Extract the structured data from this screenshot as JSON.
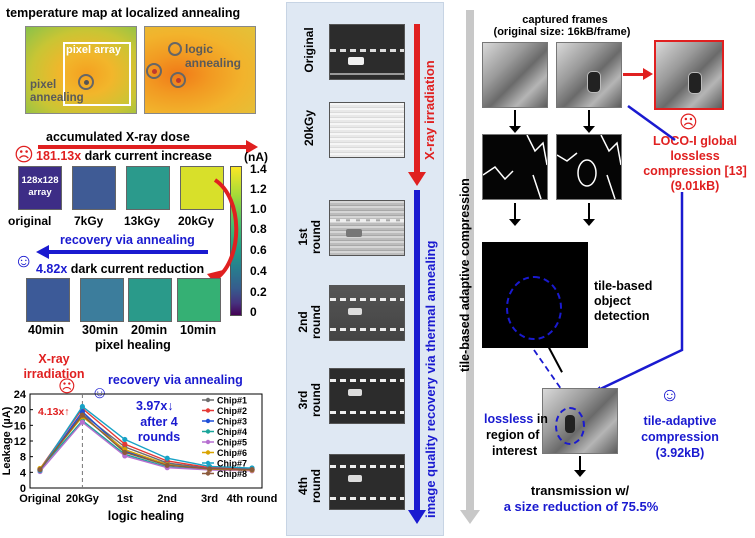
{
  "left": {
    "temp_title": "temperature map at localized annealing",
    "pixel_array": "pixel array",
    "pixel_annealing": "pixel annealing",
    "logic_annealing": "logic annealing",
    "accumulated_dose": "accumulated X-ray dose",
    "dark_increase_val": "181.13x",
    "dark_increase_txt": " dark current increase",
    "unit": "(nA)",
    "chip_array_label": "128x128 array",
    "top_labels": [
      "original",
      "7kGy",
      "13kGy",
      "20kGy"
    ],
    "recovery": "recovery via annealing",
    "dark_reduction_val": "4.82x",
    "dark_reduction_txt": " dark current reduction",
    "bottom_labels": [
      "40min",
      "30min",
      "20min",
      "10min"
    ],
    "pixel_healing": "pixel healing",
    "colorbar_ticks": [
      "1.4",
      "1.2",
      "1.0",
      "0.8",
      "0.6",
      "0.4",
      "0.2",
      "0"
    ]
  },
  "chart_data": {
    "type": "line",
    "x": [
      "Original",
      "20kGy",
      "1st",
      "2nd",
      "3rd",
      "4th round"
    ],
    "xlabel": "logic healing",
    "ylabel": "Leakage (µA)",
    "ylim": [
      0,
      24
    ],
    "yticks": [
      "0",
      "4",
      "8",
      "12",
      "16",
      "20",
      "24"
    ],
    "annotation_xray": "X-ray irradiation",
    "annotation_recovery": "recovery via annealing",
    "annotation_413": "4.13x↑",
    "annotation_397": "3.97x↓",
    "annotation_after": "after 4 rounds",
    "series": [
      {
        "name": "Chip#1",
        "color": "#6e6e6e",
        "values": [
          4.6,
          18.9,
          10.5,
          6.4,
          5.0,
          4.8
        ]
      },
      {
        "name": "Chip#2",
        "color": "#e53935",
        "values": [
          4.9,
          20.3,
          11.2,
          6.9,
          5.2,
          5.0
        ]
      },
      {
        "name": "Chip#3",
        "color": "#1e4fd8",
        "values": [
          4.4,
          19.5,
          9.4,
          6.1,
          4.9,
          4.7
        ]
      },
      {
        "name": "Chip#4",
        "color": "#1aa59a",
        "values": [
          4.8,
          17.2,
          8.6,
          5.4,
          4.7,
          4.5
        ]
      },
      {
        "name": "Chip#5",
        "color": "#b66fd0",
        "values": [
          4.2,
          16.8,
          8.2,
          5.2,
          4.6,
          4.4
        ]
      },
      {
        "name": "Chip#6",
        "color": "#d9a400",
        "values": [
          5.0,
          18.2,
          9.8,
          6.0,
          4.8,
          4.6
        ]
      },
      {
        "name": "Chip#7",
        "color": "#17a2c6",
        "values": [
          4.5,
          20.8,
          12.4,
          7.6,
          5.5,
          5.1
        ]
      },
      {
        "name": "Chip#8",
        "color": "#8b5a3c",
        "values": [
          4.7,
          18.6,
          9.1,
          5.8,
          4.9,
          4.7
        ]
      }
    ]
  },
  "middle": {
    "row_labels": [
      "Original",
      "20kGy",
      "1st round",
      "2nd round",
      "3rd round",
      "4th round"
    ],
    "xray_irradiation": "X-ray irradiation",
    "quality_recovery": "image quality recovery via thermal annealing"
  },
  "right": {
    "captured_title_1": "captured frames",
    "captured_title_2": "(original size: 16kB/frame)",
    "vertical_label": "tile-based adaptive compression",
    "loco_1": "LOCO-I global",
    "loco_2": "lossless",
    "loco_3": "compression [13]",
    "loco_4": "(9.01kB)",
    "tile_detect_1": "tile-based",
    "tile_detect_2": "object",
    "tile_detect_3": "detection",
    "lossless": "lossless",
    "lossless_in": " in",
    "region": "region of",
    "interest": "interest",
    "tile_adapt_1": "tile-adaptive",
    "tile_adapt_2": "compression",
    "tile_adapt_3": "(3.92kB)",
    "transmission": "transmission w/",
    "reduction": "a size reduction of 75.5%"
  }
}
